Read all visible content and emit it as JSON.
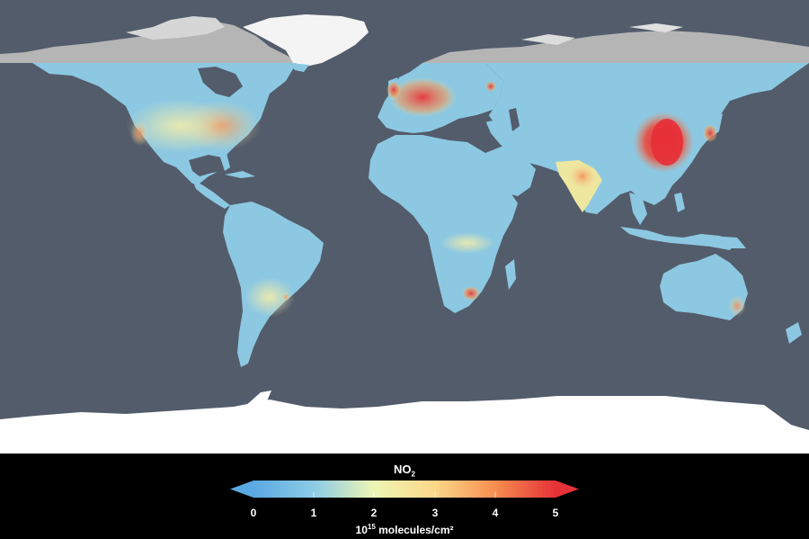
{
  "map": {
    "colors": {
      "ocean": "#535c6b",
      "land_low": "#8cc8e2",
      "land_mid": "#f0e9a2",
      "land_high": "#e8333a",
      "ice": "#ffffff",
      "polar_land": "#b9b9b9"
    }
  },
  "legend": {
    "title_main": "NO",
    "title_sub": "2",
    "ticks": [
      "0",
      "1",
      "2",
      "3",
      "4",
      "5"
    ],
    "units_base": "10",
    "units_exp": "15",
    "units_text": " molecules/cm²",
    "colors": [
      "#5aa9e3",
      "#8ccbe5",
      "#eef5b4",
      "#fbd88a",
      "#f68e4f",
      "#e63238"
    ]
  }
}
